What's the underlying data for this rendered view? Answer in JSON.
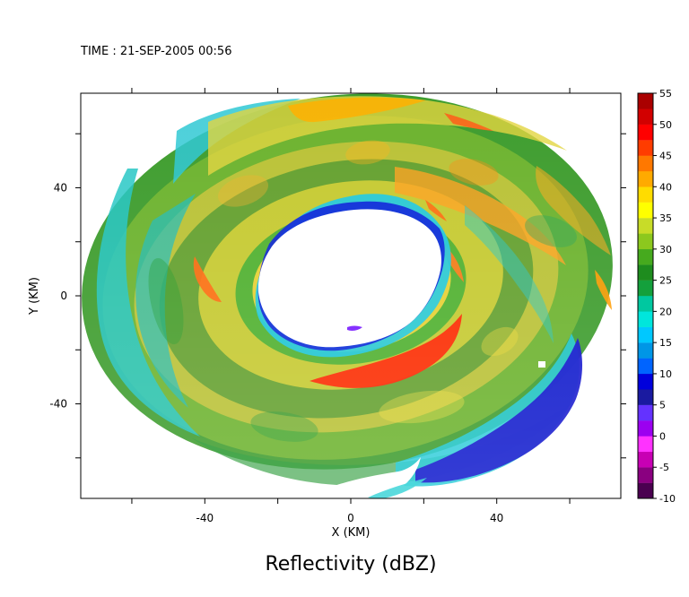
{
  "chart_data": {
    "type": "heatmap",
    "time_label": "TIME : 21-SEP-2005 00:56",
    "title": "Reflectivity (dBZ)",
    "xlabel": "X (KM)",
    "ylabel": "Y (KM)",
    "xlim": [
      -74,
      74
    ],
    "ylim": [
      -75,
      75
    ],
    "x_ticks": [
      -40,
      0,
      40
    ],
    "y_ticks": [
      -40,
      0,
      40
    ],
    "x_minor_ticks": [
      -60,
      -40,
      -20,
      0,
      20,
      40,
      60
    ],
    "y_minor_ticks": [
      -60,
      -40,
      -20,
      0,
      20,
      40,
      60
    ],
    "colorbar": {
      "labels": [
        "-10",
        "-5",
        "0",
        "5",
        "10",
        "15",
        "20",
        "25",
        "30",
        "35",
        "40",
        "45",
        "50",
        "55"
      ],
      "colors": [
        "#4a0050",
        "#8a0080",
        "#c800b4",
        "#ff32ff",
        "#9b00f0",
        "#6432ff",
        "#1a1aa0",
        "#0000dc",
        "#0064ff",
        "#0096e6",
        "#00c8ff",
        "#00e6dc",
        "#00c8a0",
        "#14a03c",
        "#1e8c1e",
        "#46aa1e",
        "#8cc81e",
        "#c8dc28",
        "#ffff00",
        "#ffdc00",
        "#ffaa00",
        "#ff7800",
        "#ff3c00",
        "#ff0000",
        "#d20000",
        "#aa0000"
      ]
    }
  }
}
